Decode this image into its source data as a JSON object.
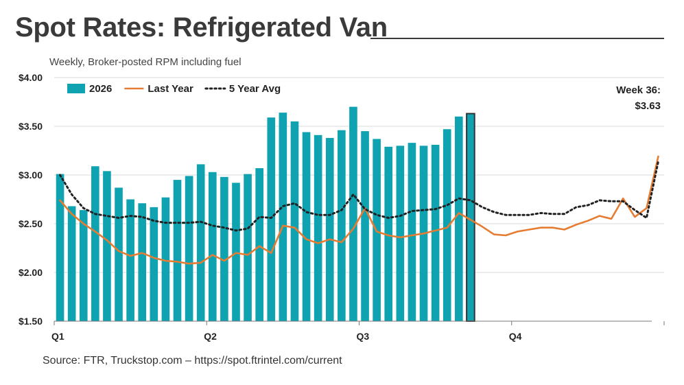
{
  "title": "Spot Rates: Refrigerated Van",
  "subtitle": "Weekly, Broker-posted RPM including fuel",
  "source": "Source: FTR, Truckstop.com – https://spot.ftrintel.com/current",
  "chart_data": {
    "type": "bar",
    "ylim": [
      1.5,
      4.0
    ],
    "yticks": [
      1.5,
      2.0,
      2.5,
      3.0,
      3.5,
      4.0
    ],
    "ytick_labels": [
      "$1.50",
      "$2.00",
      "$2.50",
      "$3.00",
      "$3.50",
      "$4.00"
    ],
    "grid": true,
    "weeks_total": 52,
    "quarter_labels": [
      "Q1",
      "Q2",
      "Q3",
      "Q4"
    ],
    "legend_position": "top-left",
    "colors": {
      "bars": "#0fa3b1",
      "last_year": "#e57c32",
      "avg": "#222222",
      "highlight_stroke": "#333333"
    },
    "annotation": {
      "line1": "Week 36:",
      "line2": "$3.63",
      "week": 36
    },
    "series": [
      {
        "name": "2026",
        "type": "bar",
        "values": [
          3.01,
          2.68,
          2.64,
          3.09,
          3.04,
          2.87,
          2.75,
          2.71,
          2.67,
          2.77,
          2.95,
          2.99,
          3.11,
          3.03,
          2.98,
          2.92,
          3.01,
          3.07,
          3.59,
          3.64,
          3.55,
          3.44,
          3.41,
          3.38,
          3.46,
          3.7,
          3.45,
          3.37,
          3.29,
          3.3,
          3.33,
          3.3,
          3.31,
          3.47,
          3.6,
          3.63
        ]
      },
      {
        "name": "Last Year",
        "type": "line",
        "values": [
          2.74,
          2.6,
          2.5,
          2.42,
          2.33,
          2.22,
          2.17,
          2.2,
          2.15,
          2.12,
          2.11,
          2.09,
          2.1,
          2.18,
          2.12,
          2.2,
          2.18,
          2.27,
          2.2,
          2.48,
          2.46,
          2.34,
          2.3,
          2.34,
          2.31,
          2.45,
          2.66,
          2.42,
          2.38,
          2.36,
          2.38,
          2.4,
          2.43,
          2.46,
          2.61,
          2.54,
          2.47,
          2.39,
          2.38,
          2.42,
          2.44,
          2.46,
          2.46,
          2.44,
          2.49,
          2.53,
          2.58,
          2.55,
          2.76,
          2.57,
          2.66,
          3.19
        ]
      },
      {
        "name": "5 Year Avg",
        "type": "line",
        "style": "dotted",
        "values": [
          3.0,
          2.8,
          2.66,
          2.6,
          2.58,
          2.56,
          2.58,
          2.57,
          2.53,
          2.51,
          2.51,
          2.51,
          2.52,
          2.48,
          2.46,
          2.43,
          2.45,
          2.57,
          2.56,
          2.68,
          2.71,
          2.62,
          2.59,
          2.59,
          2.64,
          2.8,
          2.65,
          2.59,
          2.56,
          2.58,
          2.63,
          2.64,
          2.65,
          2.69,
          2.76,
          2.74,
          2.67,
          2.62,
          2.59,
          2.59,
          2.59,
          2.61,
          2.6,
          2.6,
          2.67,
          2.69,
          2.74,
          2.73,
          2.73,
          2.64,
          2.56,
          3.14
        ]
      }
    ]
  }
}
